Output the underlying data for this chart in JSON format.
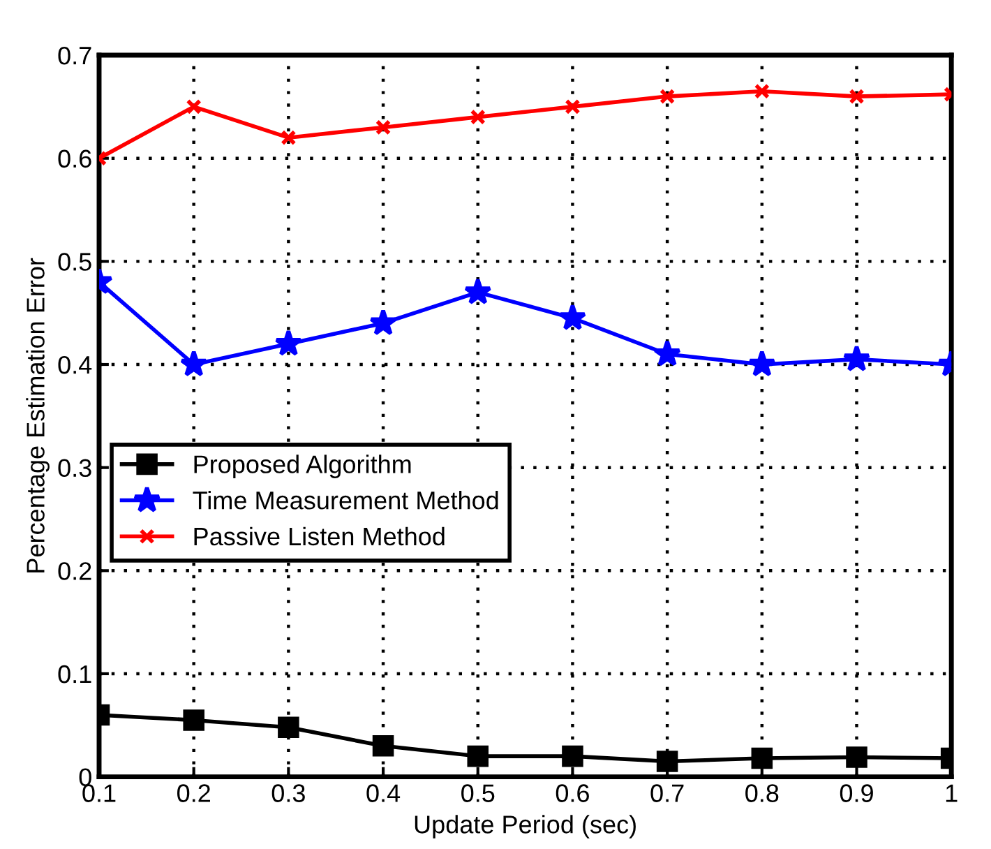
{
  "chart_data": {
    "type": "line",
    "xlabel": "Update Period (sec)",
    "ylabel": "Percentage Estimation Error",
    "x": [
      0.1,
      0.2,
      0.3,
      0.4,
      0.5,
      0.6,
      0.7,
      0.8,
      0.9,
      1
    ],
    "series": [
      {
        "name": "Proposed Algorithm",
        "color": "#000000",
        "marker": "square",
        "values": [
          0.06,
          0.055,
          0.048,
          0.03,
          0.02,
          0.02,
          0.015,
          0.018,
          0.019,
          0.018
        ]
      },
      {
        "name": "Time Measurement Method",
        "color": "#0000ff",
        "marker": "star",
        "values": [
          0.48,
          0.4,
          0.42,
          0.44,
          0.47,
          0.445,
          0.41,
          0.4,
          0.405,
          0.4
        ]
      },
      {
        "name": "Passive Listen Method",
        "color": "#ff0000",
        "marker": "cross",
        "values": [
          0.6,
          0.65,
          0.62,
          0.63,
          0.64,
          0.65,
          0.66,
          0.665,
          0.66,
          0.662
        ]
      }
    ],
    "xlim": [
      0.1,
      1
    ],
    "xticks": [
      0.1,
      0.2,
      0.3,
      0.4,
      0.5,
      0.6,
      0.7,
      0.8,
      0.9,
      1
    ],
    "ylim": [
      0,
      0.7
    ],
    "yticks": [
      0,
      0.1,
      0.2,
      0.3,
      0.4,
      0.5,
      0.6,
      0.7
    ],
    "grid": true,
    "legend": "center left",
    "line_style": "solid"
  }
}
